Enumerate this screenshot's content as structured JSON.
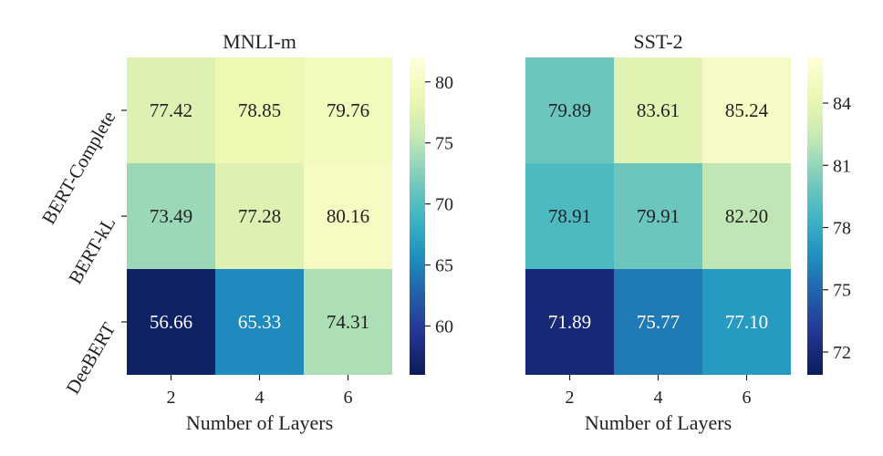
{
  "chart_data": [
    {
      "type": "heatmap",
      "title": "MNLI-m",
      "xlabel": "Number of Layers",
      "ylabel": "",
      "x_categories": [
        "2",
        "4",
        "6"
      ],
      "y_categories": [
        "BERT-Complete",
        "BERT-kL",
        "DeeBERT"
      ],
      "values": [
        [
          77.42,
          78.85,
          79.76
        ],
        [
          73.49,
          77.28,
          80.16
        ],
        [
          56.66,
          65.33,
          74.31
        ]
      ],
      "value_labels": [
        [
          "77.42",
          "78.85",
          "79.76"
        ],
        [
          "73.49",
          "77.28",
          "80.16"
        ],
        [
          "56.66",
          "65.33",
          "74.31"
        ]
      ],
      "colormap": "YlGnBu",
      "vmin": 56.0,
      "vmax": 82.0,
      "colorbar_ticks": [
        60,
        65,
        70,
        75,
        80
      ]
    },
    {
      "type": "heatmap",
      "title": "SST-2",
      "xlabel": "Number of Layers",
      "ylabel": "",
      "x_categories": [
        "2",
        "4",
        "6"
      ],
      "y_categories": [
        "BERT-Complete",
        "BERT-kL",
        "DeeBERT"
      ],
      "values": [
        [
          79.89,
          83.61,
          85.24
        ],
        [
          78.91,
          79.91,
          82.2
        ],
        [
          71.89,
          75.77,
          77.1
        ]
      ],
      "value_labels": [
        [
          "79.89",
          "83.61",
          "85.24"
        ],
        [
          "78.91",
          "79.91",
          "82.20"
        ],
        [
          "71.89",
          "75.77",
          "77.10"
        ]
      ],
      "colormap": "YlGnBu",
      "vmin": 70.9,
      "vmax": 86.2,
      "colorbar_ticks": [
        72,
        75,
        78,
        81,
        84
      ]
    }
  ]
}
